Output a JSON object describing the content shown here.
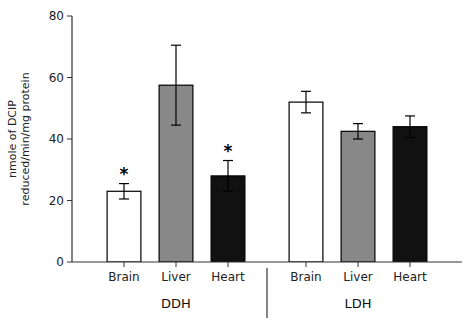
{
  "chart_data": {
    "type": "bar",
    "ylabel": "nmole of DCIP\nreduced/min/mg protein",
    "categories": [
      "Brain",
      "Liver",
      "Heart"
    ],
    "series": [
      {
        "name": "DDH",
        "values": [
          23,
          57.5,
          28
        ],
        "errors": [
          2.5,
          13,
          5
        ],
        "colors": [
          "#ffffff",
          "#888888",
          "#111111"
        ]
      },
      {
        "name": "LDH",
        "values": [
          52,
          42.5,
          44
        ],
        "errors": [
          3.5,
          2.5,
          3.5
        ],
        "colors": [
          "#ffffff",
          "#888888",
          "#111111"
        ]
      }
    ],
    "annotations": [
      {
        "text": "*",
        "series": "DDH",
        "category": "Brain"
      },
      {
        "text": "*",
        "series": "DDH",
        "category": "Heart"
      }
    ],
    "ylim": [
      0,
      80
    ],
    "yticks": [
      0,
      20,
      40,
      60,
      80
    ],
    "grid": false
  }
}
